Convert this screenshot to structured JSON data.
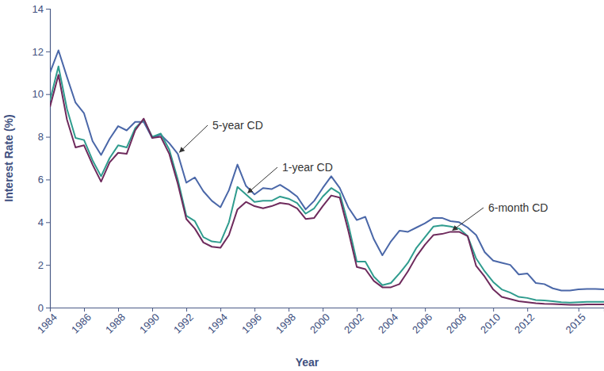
{
  "chart_data": {
    "type": "line",
    "x_label": "Year",
    "y_label": "Interest Rate (%)",
    "x": [
      1984,
      1984.5,
      1985,
      1985.5,
      1986,
      1986.5,
      1987,
      1987.5,
      1988,
      1988.5,
      1989,
      1989.5,
      1990,
      1990.5,
      1991,
      1991.5,
      1992,
      1992.5,
      1993,
      1993.5,
      1994,
      1994.5,
      1995,
      1995.5,
      1996,
      1996.5,
      1997,
      1997.5,
      1998,
      1998.5,
      1999,
      1999.5,
      2000,
      2000.5,
      2001,
      2001.5,
      2002,
      2002.5,
      2003,
      2003.5,
      2004,
      2004.5,
      2005,
      2005.5,
      2006,
      2006.5,
      2007,
      2007.5,
      2008,
      2008.5,
      2009,
      2009.5,
      2010,
      2010.5,
      2011,
      2011.5,
      2012,
      2012.5,
      2013,
      2013.5,
      2014,
      2014.5,
      2015,
      2015.5,
      2016,
      2016.5
    ],
    "series": [
      {
        "name": "5-year CD",
        "color": "#4a67a8",
        "values": [
          11.0,
          12.05,
          10.8,
          9.6,
          9.1,
          7.8,
          7.15,
          7.9,
          8.5,
          8.3,
          8.7,
          8.7,
          7.95,
          8.1,
          7.7,
          7.2,
          5.85,
          6.1,
          5.45,
          5.0,
          4.7,
          5.5,
          6.7,
          5.7,
          5.3,
          5.6,
          5.55,
          5.75,
          5.5,
          5.2,
          4.6,
          5.0,
          5.6,
          6.15,
          5.6,
          4.7,
          4.1,
          4.25,
          3.2,
          2.45,
          3.1,
          3.6,
          3.55,
          3.75,
          3.95,
          4.2,
          4.2,
          4.05,
          4.0,
          3.75,
          3.4,
          2.6,
          2.2,
          2.1,
          2.0,
          1.55,
          1.6,
          1.15,
          1.1,
          0.9,
          0.8,
          0.8,
          0.85,
          0.87,
          0.87,
          0.85
        ]
      },
      {
        "name": "1-year CD",
        "color": "#2f9c8e",
        "values": [
          9.7,
          11.3,
          9.3,
          7.95,
          7.85,
          6.9,
          6.15,
          7.0,
          7.6,
          7.5,
          8.4,
          8.8,
          8.0,
          8.15,
          7.4,
          6.0,
          4.3,
          4.05,
          3.3,
          3.1,
          3.05,
          4.0,
          5.65,
          5.3,
          4.95,
          5.0,
          5.0,
          5.2,
          5.1,
          4.9,
          4.4,
          4.65,
          5.2,
          5.6,
          5.35,
          3.9,
          2.15,
          2.15,
          1.45,
          1.05,
          1.15,
          1.6,
          2.1,
          2.8,
          3.3,
          3.8,
          3.85,
          3.8,
          3.7,
          3.35,
          2.3,
          1.7,
          1.2,
          0.85,
          0.7,
          0.5,
          0.45,
          0.35,
          0.33,
          0.3,
          0.25,
          0.23,
          0.25,
          0.27,
          0.27,
          0.27
        ]
      },
      {
        "name": "6-month CD",
        "color": "#6e2a5c",
        "values": [
          9.4,
          10.9,
          8.8,
          7.5,
          7.6,
          6.7,
          5.9,
          6.8,
          7.25,
          7.2,
          8.3,
          8.85,
          7.95,
          8.0,
          7.2,
          5.8,
          4.15,
          3.7,
          3.05,
          2.85,
          2.8,
          3.4,
          4.6,
          4.95,
          4.75,
          4.65,
          4.75,
          4.9,
          4.85,
          4.65,
          4.15,
          4.2,
          4.75,
          5.25,
          5.15,
          3.6,
          1.9,
          1.8,
          1.25,
          0.95,
          0.95,
          1.1,
          1.7,
          2.4,
          2.95,
          3.4,
          3.45,
          3.55,
          3.55,
          3.35,
          1.95,
          1.45,
          0.85,
          0.5,
          0.4,
          0.3,
          0.25,
          0.2,
          0.18,
          0.17,
          0.15,
          0.13,
          0.13,
          0.15,
          0.15,
          0.15
        ]
      }
    ],
    "xlim": [
      1984,
      2016.5
    ],
    "xticks": [
      1984,
      1986,
      1988,
      1990,
      1992,
      1994,
      1996,
      1998,
      2000,
      2002,
      2004,
      2006,
      2008,
      2010,
      2012,
      2015
    ],
    "ylim": [
      0,
      14
    ],
    "yticks": [
      0,
      2,
      4,
      6,
      8,
      10,
      12,
      14
    ],
    "grid": false
  }
}
